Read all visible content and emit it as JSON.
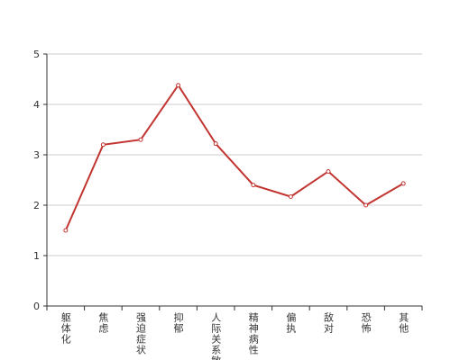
{
  "chart_data": {
    "type": "line",
    "categories": [
      "躯体化",
      "焦虑",
      "强迫症状",
      "抑郁",
      "人际关系敏感",
      "精神病性",
      "偏执",
      "敌对",
      "恐怖",
      "其他"
    ],
    "values": [
      1.5,
      3.2,
      3.3,
      4.38,
      3.22,
      2.4,
      2.17,
      2.67,
      2.0,
      2.43
    ],
    "color": "#c23531",
    "ylim": [
      0,
      5
    ],
    "yticks": [
      0,
      1,
      2,
      3,
      4,
      5
    ],
    "grid": true
  }
}
